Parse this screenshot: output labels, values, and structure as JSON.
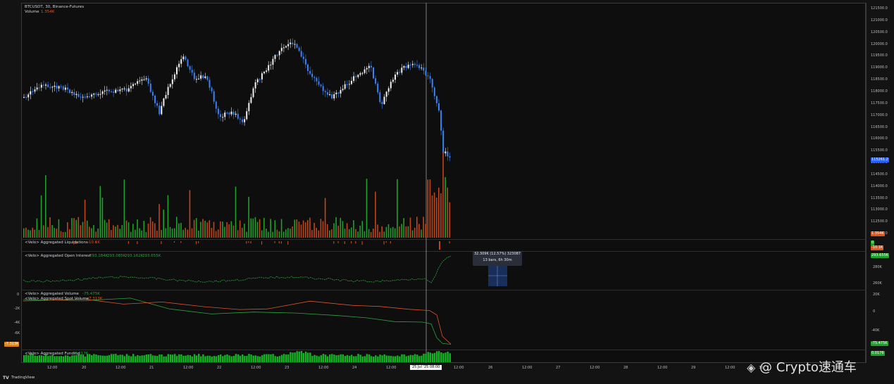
{
  "symbol_line": "BTCUSDT, 30, Binance-Futures",
  "volume_label": "Volume",
  "volume_value": "1.354K",
  "price_scale": [
    "121500.0",
    "121000.0",
    "120500.0",
    "120000.0",
    "119500.0",
    "119000.0",
    "118500.0",
    "118000.0",
    "117500.0",
    "117000.0",
    "116500.0",
    "116000.0",
    "115500.0",
    "115000.0",
    "114500.0",
    "114000.0",
    "113500.0",
    "113000.0",
    "112500.0",
    "112000.0"
  ],
  "current_price": "115261.2",
  "volume_tag": "1.354K",
  "panes": {
    "liquidations": {
      "label": "<Velo> Aggregated Liquidations",
      "value": "-10.1K",
      "tag_value": "-10.1K",
      "tag_zero": "0"
    },
    "open_interest": {
      "label": "<Velo> Aggregated Open Interest",
      "values": [
        "293.184K",
        "293.085K",
        "293.162K",
        "293.655K"
      ],
      "tag": "293.655K",
      "scale": [
        "280K",
        "260K"
      ]
    },
    "volume": {
      "label": "<Velo> Aggregated Volume",
      "value": "-75.475K"
    },
    "spot_volume": {
      "label": "<Velo> Aggregated Spot Volume",
      "value": "-7.313K",
      "left_scale": [
        "0",
        "-2K",
        "-4K",
        "-6K"
      ],
      "left_tag": "-7.313K",
      "scale": [
        "20K",
        "0",
        "-40K"
      ],
      "green_tag": "-75.475K"
    },
    "funding": {
      "label": "<Velo> Aggregated Funding",
      "value": "0.0176",
      "tag": "0.0176"
    }
  },
  "tooltip": {
    "line1": "32.309K (12.57%) 323087",
    "line2": "13 bars, 6h 30m"
  },
  "time_axis": [
    "12:00",
    "20",
    "12:00",
    "21",
    "12:00",
    "22",
    "12:00",
    "23",
    "12:00",
    "24",
    "12:00",
    "25 Jul '25  08:00",
    "12:00",
    "26",
    "12:00",
    "27",
    "12:00",
    "28",
    "12:00",
    "29",
    "12:00",
    "30"
  ],
  "footer_brand": "TradingView",
  "watermark": "@ Crypto速通车",
  "colors": {
    "up": "#f0f0f0",
    "down": "#3b82f6",
    "vol_up": "#1fa02a",
    "vol_down": "#c0451a",
    "oi": "#2ea043",
    "oi_red": "#d9532a",
    "funding": "#14b324",
    "bg": "#0e0e0e"
  }
}
